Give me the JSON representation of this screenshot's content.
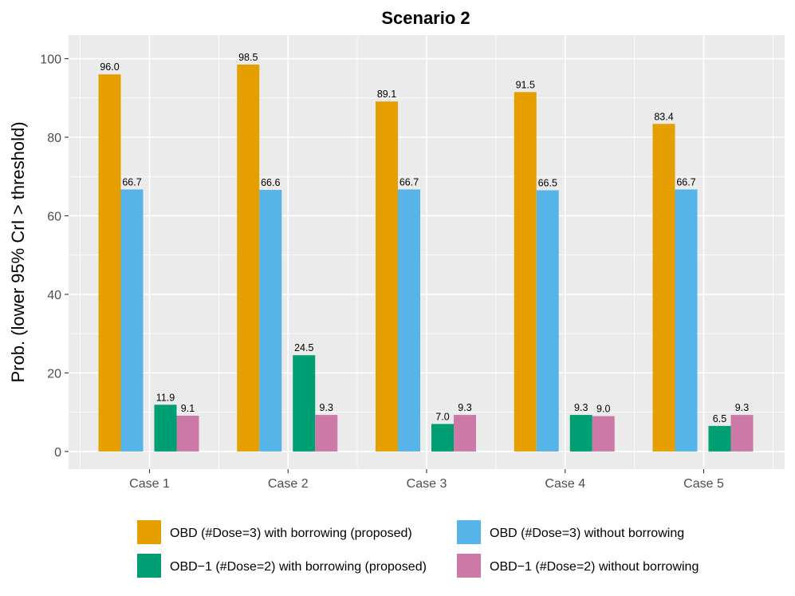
{
  "chart_data": {
    "type": "bar",
    "title": "Scenario 2",
    "xlabel": "",
    "ylabel": "Prob. (lower 95% CrI > threshold)",
    "ylim": [
      -4.5,
      106
    ],
    "yticks": [
      0,
      20,
      40,
      60,
      80,
      100
    ],
    "categories": [
      "Case 1",
      "Case 2",
      "Case 3",
      "Case 4",
      "Case 5"
    ],
    "legend_position": "bottom",
    "series": [
      {
        "name": "OBD (#Dose=3) with borrowing (proposed)",
        "color": "#E69F00",
        "values": [
          96.0,
          98.5,
          89.1,
          91.5,
          83.4
        ],
        "labels": [
          "96.0",
          "98.5",
          "89.1",
          "91.5",
          "83.4"
        ]
      },
      {
        "name": "OBD (#Dose=3) without borrowing",
        "color": "#56B4E9",
        "values": [
          66.7,
          66.6,
          66.7,
          66.5,
          66.7
        ],
        "labels": [
          "66.7",
          "66.6",
          "66.7",
          "66.5",
          "66.7"
        ]
      },
      {
        "name": "OBD−1 (#Dose=2) with borrowing (proposed)",
        "color": "#009E73",
        "values": [
          11.9,
          24.5,
          7.0,
          9.3,
          6.5
        ],
        "labels": [
          "11.9",
          "24.5",
          "7.0",
          "9.3",
          "6.5"
        ]
      },
      {
        "name": "OBD−1 (#Dose=2) without borrowing",
        "color": "#CC79A7",
        "values": [
          9.1,
          9.3,
          9.3,
          9.0,
          9.3
        ],
        "labels": [
          "9.1",
          "9.3",
          "9.3",
          "9.0",
          "9.3"
        ]
      }
    ]
  }
}
